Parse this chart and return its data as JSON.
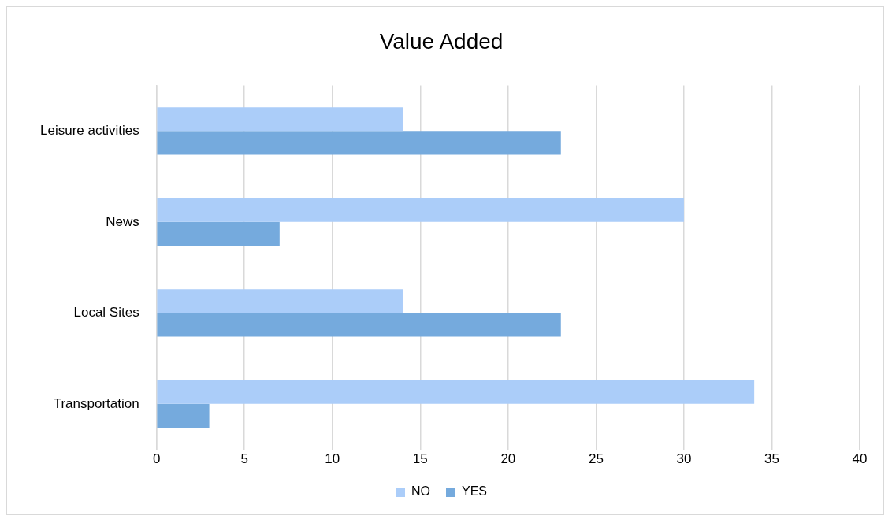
{
  "chart_data": {
    "type": "bar",
    "orientation": "horizontal",
    "title": "Value Added",
    "categories": [
      "Leisure activities",
      "News",
      "Local Sites",
      "Transportation"
    ],
    "series": [
      {
        "name": "NO",
        "color": "#abcdf9",
        "values": [
          14,
          30,
          14,
          34
        ]
      },
      {
        "name": "YES",
        "color": "#75aadd",
        "values": [
          23,
          7,
          23,
          3
        ]
      }
    ],
    "xlim": [
      0,
      40
    ],
    "xticks": [
      0,
      5,
      10,
      15,
      20,
      25,
      30,
      35,
      40
    ],
    "grid": "x",
    "legend": "bottom"
  }
}
